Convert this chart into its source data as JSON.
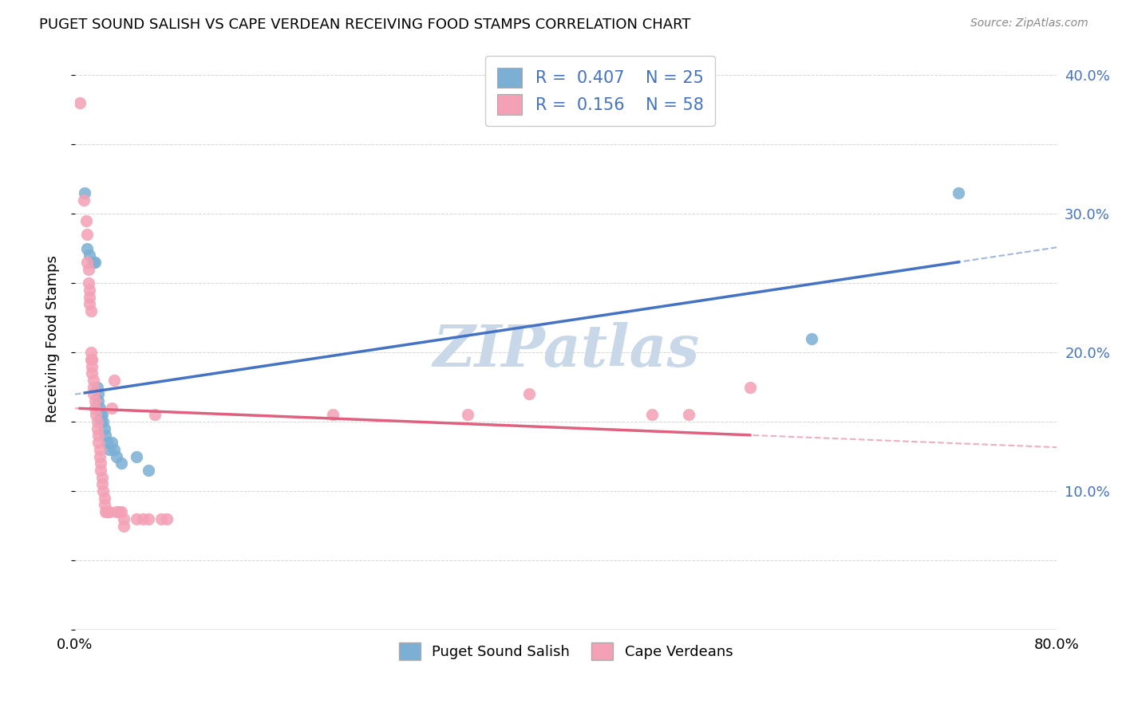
{
  "title": "PUGET SOUND SALISH VS CAPE VERDEAN RECEIVING FOOD STAMPS CORRELATION CHART",
  "source": "Source: ZipAtlas.com",
  "ylabel": "Receiving Food Stamps",
  "blue_R": 0.407,
  "blue_N": 25,
  "pink_R": 0.156,
  "pink_N": 58,
  "blue_color": "#7bafd4",
  "pink_color": "#f4a0b5",
  "blue_line_color": "#4472c4",
  "pink_line_color": "#e06080",
  "watermark": "ZIPatlas",
  "watermark_color": "#c8d8e8",
  "xlim": [
    0.0,
    0.8
  ],
  "ylim": [
    0.0,
    0.42
  ],
  "x_tick_labels_show": [
    "0.0%",
    "80.0%"
  ],
  "x_tick_labels_positions": [
    0.0,
    0.8
  ],
  "y_ticks_right": [
    0.1,
    0.2,
    0.3,
    0.4
  ],
  "y_tick_labels_right": [
    "10.0%",
    "20.0%",
    "30.0%",
    "40.0%"
  ],
  "blue_points": [
    [
      0.008,
      0.315
    ],
    [
      0.01,
      0.275
    ],
    [
      0.012,
      0.27
    ],
    [
      0.015,
      0.265
    ],
    [
      0.016,
      0.265
    ],
    [
      0.018,
      0.175
    ],
    [
      0.019,
      0.17
    ],
    [
      0.019,
      0.165
    ],
    [
      0.02,
      0.16
    ],
    [
      0.021,
      0.155
    ],
    [
      0.021,
      0.15
    ],
    [
      0.022,
      0.155
    ],
    [
      0.023,
      0.15
    ],
    [
      0.024,
      0.145
    ],
    [
      0.025,
      0.14
    ],
    [
      0.026,
      0.135
    ],
    [
      0.028,
      0.13
    ],
    [
      0.03,
      0.135
    ],
    [
      0.032,
      0.13
    ],
    [
      0.034,
      0.125
    ],
    [
      0.038,
      0.12
    ],
    [
      0.05,
      0.125
    ],
    [
      0.06,
      0.115
    ],
    [
      0.6,
      0.21
    ],
    [
      0.72,
      0.315
    ]
  ],
  "pink_points": [
    [
      0.004,
      0.38
    ],
    [
      0.007,
      0.31
    ],
    [
      0.009,
      0.295
    ],
    [
      0.01,
      0.285
    ],
    [
      0.01,
      0.265
    ],
    [
      0.011,
      0.26
    ],
    [
      0.011,
      0.25
    ],
    [
      0.012,
      0.245
    ],
    [
      0.012,
      0.24
    ],
    [
      0.012,
      0.235
    ],
    [
      0.013,
      0.23
    ],
    [
      0.013,
      0.2
    ],
    [
      0.013,
      0.195
    ],
    [
      0.014,
      0.195
    ],
    [
      0.014,
      0.19
    ],
    [
      0.014,
      0.185
    ],
    [
      0.015,
      0.18
    ],
    [
      0.015,
      0.175
    ],
    [
      0.015,
      0.17
    ],
    [
      0.016,
      0.165
    ],
    [
      0.016,
      0.16
    ],
    [
      0.017,
      0.155
    ],
    [
      0.018,
      0.15
    ],
    [
      0.018,
      0.145
    ],
    [
      0.019,
      0.14
    ],
    [
      0.019,
      0.135
    ],
    [
      0.02,
      0.13
    ],
    [
      0.02,
      0.125
    ],
    [
      0.021,
      0.12
    ],
    [
      0.021,
      0.115
    ],
    [
      0.022,
      0.11
    ],
    [
      0.022,
      0.105
    ],
    [
      0.023,
      0.1
    ],
    [
      0.024,
      0.095
    ],
    [
      0.024,
      0.09
    ],
    [
      0.025,
      0.085
    ],
    [
      0.026,
      0.085
    ],
    [
      0.027,
      0.085
    ],
    [
      0.028,
      0.085
    ],
    [
      0.03,
      0.16
    ],
    [
      0.032,
      0.18
    ],
    [
      0.034,
      0.085
    ],
    [
      0.036,
      0.085
    ],
    [
      0.038,
      0.085
    ],
    [
      0.04,
      0.08
    ],
    [
      0.04,
      0.075
    ],
    [
      0.05,
      0.08
    ],
    [
      0.055,
      0.08
    ],
    [
      0.06,
      0.08
    ],
    [
      0.065,
      0.155
    ],
    [
      0.07,
      0.08
    ],
    [
      0.075,
      0.08
    ],
    [
      0.21,
      0.155
    ],
    [
      0.32,
      0.155
    ],
    [
      0.37,
      0.17
    ],
    [
      0.47,
      0.155
    ],
    [
      0.5,
      0.155
    ],
    [
      0.55,
      0.175
    ]
  ]
}
